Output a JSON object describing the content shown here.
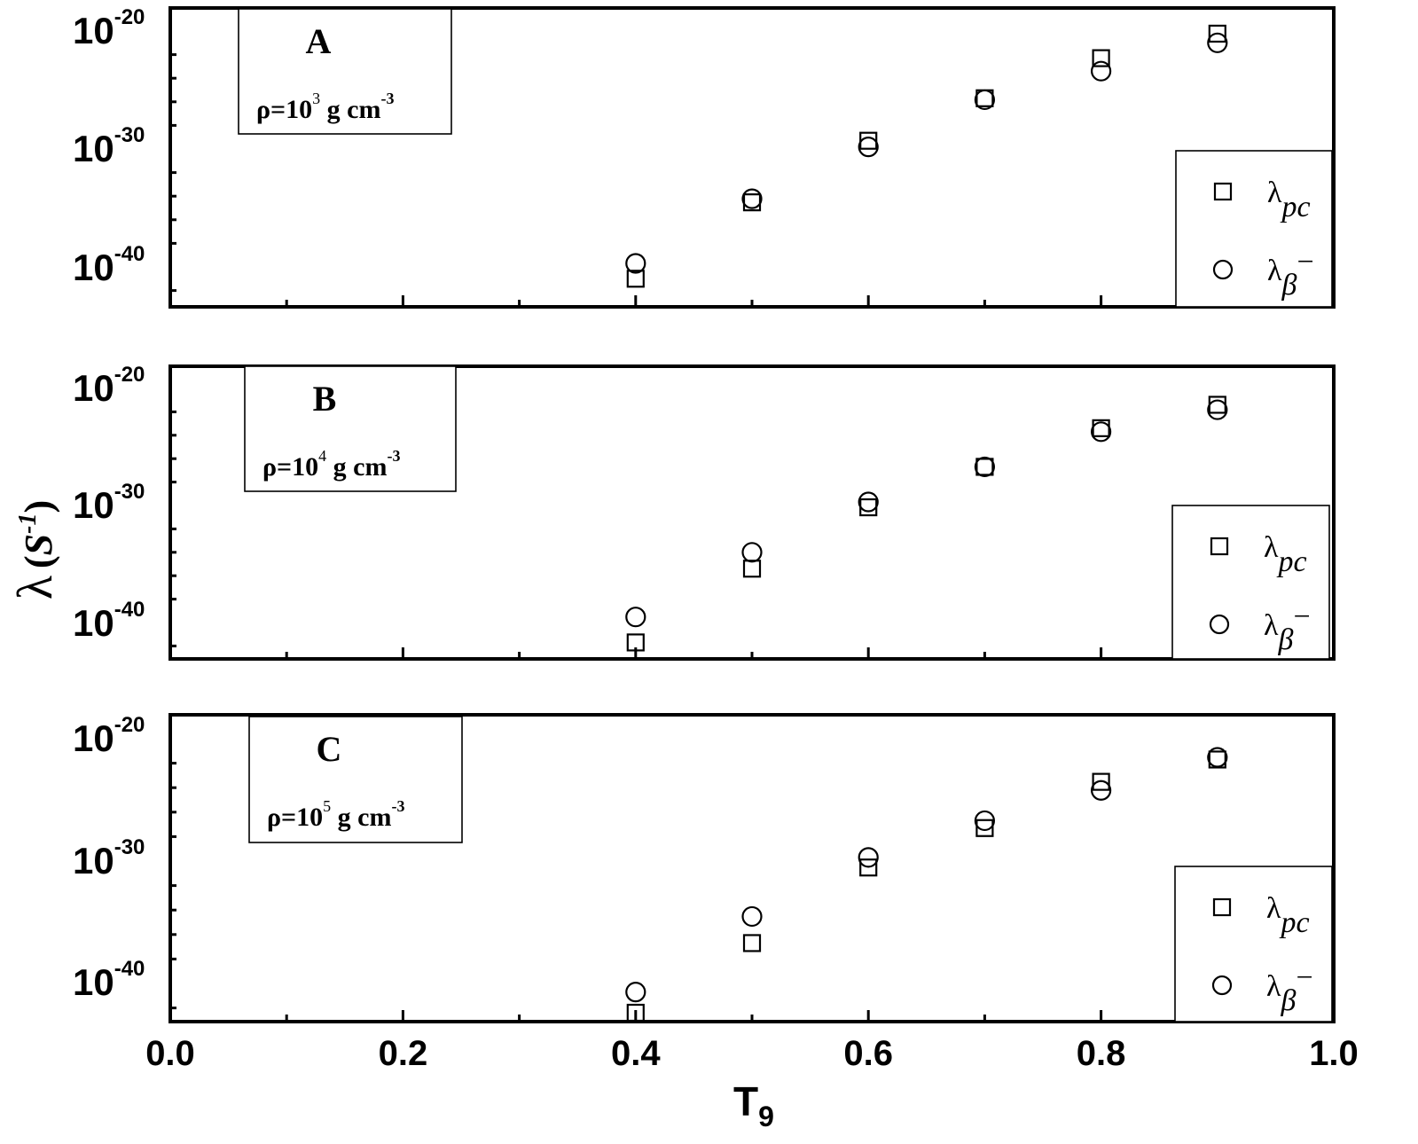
{
  "figure": {
    "ylabel_main": "λ",
    "ylabel_unit": "S",
    "ylabel_exp": "-1",
    "xlabel_main": "T",
    "xlabel_sub": "9"
  },
  "legend": {
    "pc_symbol": "λ",
    "pc_sub": "pc",
    "beta_symbol": "λ",
    "beta_sub": "β",
    "beta_sup": "−"
  },
  "chart_data": [
    {
      "type": "scatter",
      "panel": "A",
      "density_prefix": "ρ=10",
      "density_exp": "3",
      "density_unit": " g cm",
      "density_unit_exp": "-3",
      "x": [
        0.4,
        0.5,
        0.6,
        0.7,
        0.8,
        0.9
      ],
      "series": [
        {
          "name": "λpc",
          "marker": "square",
          "values": [
            1e-41,
            3e-35,
            5e-30,
            2e-26,
            5e-23,
            6e-21
          ]
        },
        {
          "name": "λβ−",
          "marker": "circle",
          "values": [
            2e-40,
            6e-35,
            1.5e-30,
            1.5e-26,
            4e-24,
            1e-21
          ]
        }
      ],
      "xlim": [
        0.0,
        1.0
      ],
      "ylim_log10": [
        -43,
        -18
      ],
      "yticks": [
        "10^-20",
        "10^-30",
        "10^-40"
      ],
      "yscale": "log",
      "legend_position": "bottom-right"
    },
    {
      "type": "scatter",
      "panel": "B",
      "density_prefix": "ρ=10",
      "density_exp": "4",
      "density_unit": " g cm",
      "density_unit_exp": "-3",
      "x": [
        0.4,
        0.5,
        0.6,
        0.7,
        0.8,
        0.9
      ],
      "series": [
        {
          "name": "λpc",
          "marker": "square",
          "values": [
            2e-42,
            4e-36,
            7e-31,
            2e-27,
            4e-24,
            4e-22
          ]
        },
        {
          "name": "λβ−",
          "marker": "circle",
          "values": [
            3e-40,
            1e-34,
            2e-30,
            2e-27,
            2e-24,
            1.5e-22
          ]
        }
      ],
      "xlim": [
        0.0,
        1.0
      ],
      "ylim_log10": [
        -43,
        -18
      ],
      "yticks": [
        "10^-20",
        "10^-30",
        "10^-40"
      ],
      "yscale": "log",
      "legend_position": "bottom-right"
    },
    {
      "type": "scatter",
      "panel": "C",
      "density_prefix": "ρ=10",
      "density_exp": "5",
      "density_unit": " g cm",
      "density_unit_exp": "-3",
      "x": [
        0.4,
        0.5,
        0.6,
        0.7,
        0.8,
        0.9
      ],
      "series": [
        {
          "name": "λpc",
          "marker": "square",
          "values": [
            1e-43,
            2e-37,
            3e-31,
            5e-28,
            3e-24,
            2e-22
          ]
        },
        {
          "name": "λβ−",
          "marker": "circle",
          "values": [
            2e-41,
            3e-35,
            2e-30,
            2e-27,
            6e-25,
            3e-22
          ]
        }
      ],
      "xlim": [
        0.0,
        1.0
      ],
      "ylim_log10": [
        -43,
        -18
      ],
      "yticks": [
        "10^-20",
        "10^-30",
        "10^-40"
      ],
      "yscale": "log",
      "legend_position": "bottom-right"
    }
  ]
}
